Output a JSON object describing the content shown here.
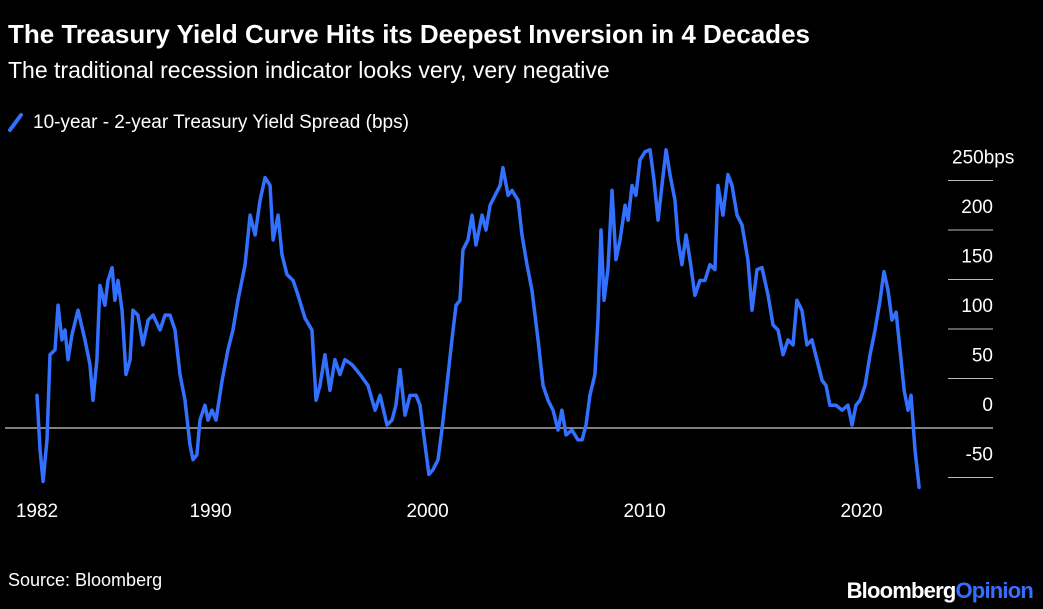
{
  "chart_data": {
    "type": "line",
    "title": "The Treasury Yield Curve Hits its Deepest Inversion in 4 Decades",
    "subtitle": "The traditional recession indicator looks very, very negative",
    "source": "Source: Bloomberg",
    "brand": "Bloomberg",
    "brand_accent": "Opinion",
    "xlim": [
      1982,
      2023
    ],
    "xticks": [
      1982,
      1990,
      2000,
      2010,
      2020
    ],
    "ylim": [
      -60,
      290
    ],
    "yticks": [
      -50,
      0,
      50,
      100,
      150,
      200,
      {
        "value": 250,
        "label": "250bps"
      }
    ],
    "x": [
      1982.0,
      1982.14,
      1982.28,
      1982.46,
      1982.6,
      1982.83,
      1982.97,
      1983.15,
      1983.29,
      1983.43,
      1983.61,
      1983.89,
      1984.21,
      1984.44,
      1984.58,
      1984.76,
      1984.9,
      1985.13,
      1985.27,
      1985.46,
      1985.59,
      1985.73,
      1985.92,
      1986.1,
      1986.29,
      1986.42,
      1986.65,
      1986.88,
      1987.12,
      1987.35,
      1987.67,
      1987.9,
      1988.13,
      1988.36,
      1988.59,
      1988.82,
      1989.05,
      1989.19,
      1989.37,
      1989.51,
      1989.74,
      1989.88,
      1990.06,
      1990.25,
      1990.53,
      1990.8,
      1991.03,
      1991.26,
      1991.59,
      1991.82,
      1992.05,
      1992.28,
      1992.51,
      1992.74,
      1992.88,
      1993.11,
      1993.29,
      1993.52,
      1993.8,
      1994.03,
      1994.35,
      1994.67,
      1994.86,
      1995.04,
      1995.27,
      1995.5,
      1995.73,
      1995.96,
      1996.19,
      1996.52,
      1996.89,
      1997.25,
      1997.58,
      1997.81,
      1998.13,
      1998.36,
      1998.54,
      1998.73,
      1998.96,
      1999.19,
      1999.47,
      1999.65,
      1999.88,
      2000.06,
      2000.25,
      2000.48,
      2000.66,
      2000.89,
      2001.12,
      2001.31,
      2001.49,
      2001.63,
      2001.86,
      2002.05,
      2002.23,
      2002.51,
      2002.69,
      2002.88,
      2003.11,
      2003.34,
      2003.47,
      2003.71,
      2003.89,
      2004.17,
      2004.35,
      2004.58,
      2004.81,
      2005.09,
      2005.32,
      2005.55,
      2005.78,
      2006.01,
      2006.19,
      2006.38,
      2006.65,
      2006.93,
      2007.12,
      2007.3,
      2007.48,
      2007.71,
      2007.85,
      2007.99,
      2008.13,
      2008.31,
      2008.5,
      2008.68,
      2008.87,
      2009.1,
      2009.24,
      2009.42,
      2009.6,
      2009.79,
      2010.02,
      2010.25,
      2010.43,
      2010.62,
      2010.8,
      2010.99,
      2011.17,
      2011.4,
      2011.54,
      2011.72,
      2011.91,
      2012.09,
      2012.32,
      2012.55,
      2012.78,
      2013.01,
      2013.24,
      2013.38,
      2013.61,
      2013.84,
      2014.03,
      2014.26,
      2014.49,
      2014.76,
      2014.95,
      2015.18,
      2015.41,
      2015.69,
      2015.92,
      2016.15,
      2016.38,
      2016.61,
      2016.84,
      2017.02,
      2017.25,
      2017.48,
      2017.71,
      2017.94,
      2018.18,
      2018.36,
      2018.54,
      2018.82,
      2019.1,
      2019.37,
      2019.56,
      2019.74,
      2019.93,
      2020.16,
      2020.39,
      2020.62,
      2020.85,
      2021.03,
      2021.22,
      2021.4,
      2021.59,
      2021.77,
      2021.96,
      2022.14,
      2022.28,
      2022.46,
      2022.65
    ],
    "series": [
      {
        "name": "10-year - 2-year Treasury Yield Spread (bps)",
        "color": "#3370ff",
        "values": [
          33,
          -22,
          -54,
          -12,
          74,
          79,
          124,
          89,
          99,
          69,
          94,
          119,
          89,
          64,
          28,
          69,
          144,
          124,
          149,
          162,
          129,
          149,
          119,
          54,
          69,
          119,
          114,
          84,
          109,
          114,
          99,
          114,
          114,
          99,
          54,
          28,
          -17,
          -32,
          -27,
          8,
          23,
          8,
          18,
          8,
          48,
          79,
          99,
          129,
          165,
          215,
          195,
          230,
          253,
          245,
          190,
          215,
          175,
          155,
          149,
          134,
          111,
          99,
          28,
          43,
          74,
          38,
          69,
          54,
          69,
          64,
          54,
          43,
          18,
          33,
          3,
          8,
          23,
          59,
          13,
          33,
          33,
          23,
          -17,
          -47,
          -42,
          -32,
          -2,
          43,
          89,
          124,
          129,
          180,
          190,
          215,
          185,
          215,
          200,
          225,
          235,
          245,
          263,
          235,
          240,
          230,
          195,
          165,
          139,
          89,
          43,
          28,
          18,
          -2,
          18,
          -7,
          -2,
          -12,
          -12,
          3,
          33,
          54,
          109,
          200,
          129,
          160,
          240,
          170,
          190,
          225,
          210,
          245,
          235,
          271,
          279,
          281,
          251,
          210,
          245,
          281,
          256,
          230,
          190,
          165,
          195,
          170,
          134,
          149,
          149,
          165,
          160,
          245,
          215,
          256,
          245,
          215,
          205,
          170,
          119,
          160,
          162,
          134,
          104,
          99,
          74,
          89,
          84,
          129,
          119,
          84,
          89,
          69,
          48,
          43,
          23,
          23,
          18,
          23,
          3,
          23,
          28,
          43,
          74,
          99,
          129,
          158,
          139,
          109,
          117,
          79,
          38,
          18,
          33,
          -22,
          -60
        ]
      }
    ]
  }
}
